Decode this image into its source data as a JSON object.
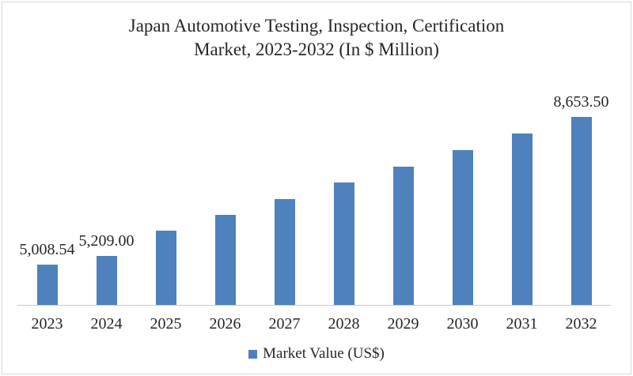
{
  "title": {
    "line1": "Japan Automotive Testing, Inspection, Certification",
    "line2": "Market, 2023-2032 (In $ Million)"
  },
  "legend": {
    "label": "Market Value (US$)"
  },
  "colors": {
    "bar": "#4F81BD",
    "axis_line": "#C9C9C9",
    "frame_border": "#D9D9D9",
    "text": "#262626"
  },
  "chart_data": {
    "type": "bar",
    "title": "Japan Automotive Testing, Inspection, Certification Market, 2023-2032 (In $ Million)",
    "categories": [
      "2023",
      "2024",
      "2025",
      "2026",
      "2027",
      "2028",
      "2029",
      "2030",
      "2031",
      "2032"
    ],
    "series": [
      {
        "name": "Market Value (US$)",
        "values": [
          5008.54,
          5209.0,
          5837,
          6230,
          6618,
          7031,
          7438,
          7845,
          8247,
          8653.5
        ]
      }
    ],
    "data_labels": [
      "5,008.54",
      "5,209.00",
      "",
      "",
      "",
      "",
      "",
      "",
      "",
      "8,653.50"
    ],
    "xlabel": "",
    "ylabel": "",
    "ylim": [
      4000,
      8800
    ],
    "grid": false,
    "y_axis_visible": false,
    "legend_position": "bottom"
  }
}
